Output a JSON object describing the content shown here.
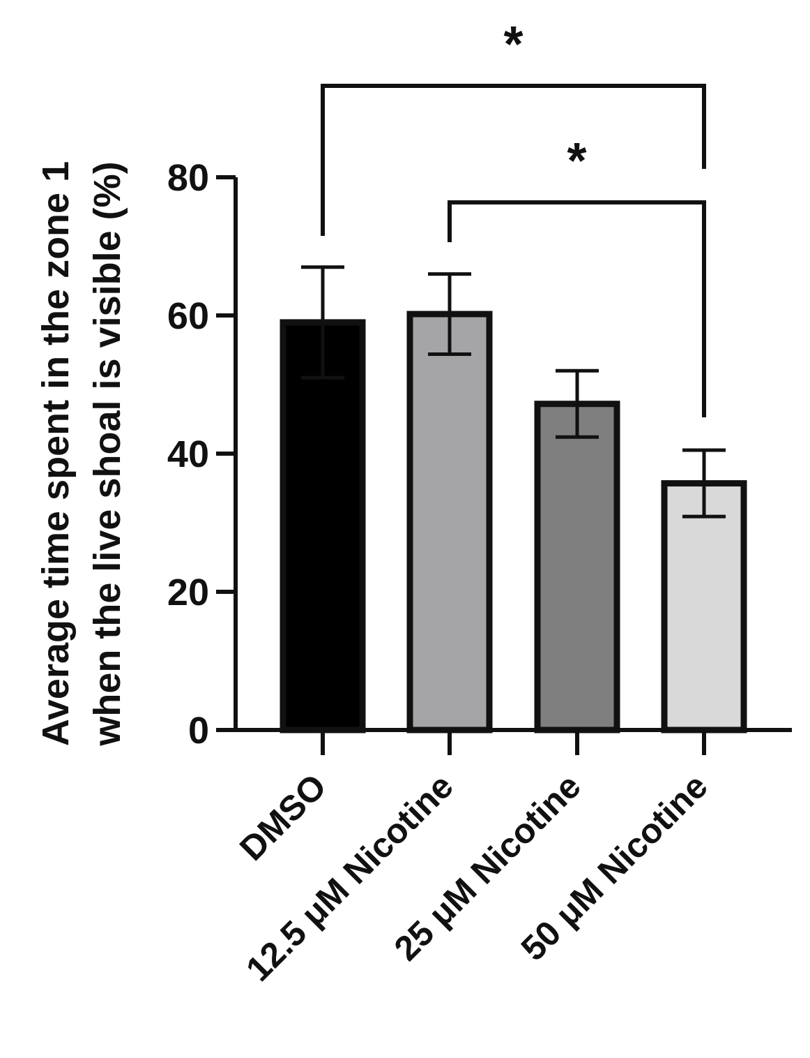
{
  "chart_data": {
    "type": "bar",
    "title": "",
    "xlabel": "",
    "ylabel": "Average time spent in the zone 1 when the live shoal is visible (%)",
    "ylabel_lines": [
      "Average time spent in the zone 1",
      "when the live shoal is visible (%)"
    ],
    "categories": [
      "DMSO",
      "12.5 μM Nicotine",
      "25 μM Nicotine",
      "50 μM Nicotine"
    ],
    "values": [
      59.0,
      60.2,
      47.2,
      35.7
    ],
    "error": [
      8.0,
      5.8,
      4.8,
      4.8
    ],
    "fill_colors": [
      "#000000",
      "#a5a5a8",
      "#7f7f7f",
      "#d9d9d9"
    ],
    "ylim": [
      0,
      80
    ],
    "yticks": [
      "0",
      "20",
      "40",
      "60",
      "80"
    ],
    "grid": false,
    "legend": "none",
    "significance": [
      {
        "from": "DMSO",
        "to": "50 μM Nicotine",
        "label": "*"
      },
      {
        "from": "12.5 μM Nicotine",
        "to": "50 μM Nicotine",
        "label": "*"
      }
    ]
  }
}
